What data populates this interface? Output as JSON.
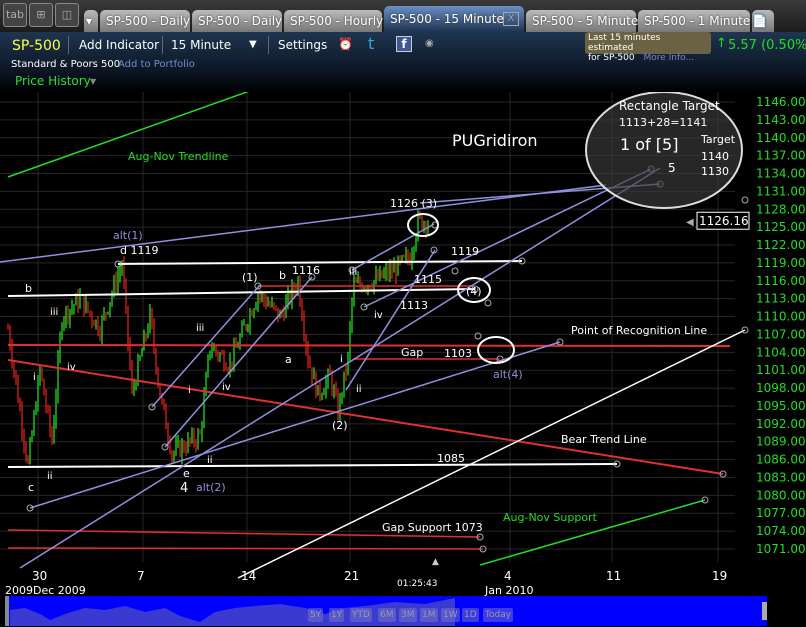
{
  "tabbar": {
    "tab_btn": "tab",
    "tabs": [
      {
        "label": "SP-500 - Daily"
      },
      {
        "label": "SP-500 - Daily"
      },
      {
        "label": "SP-500 - Hourly"
      },
      {
        "label": "SP-500 - 15 Minute",
        "active": true
      },
      {
        "label": "SP-500 - 5 Minute"
      },
      {
        "label": "SP-500 - 1 Minute"
      }
    ],
    "close": "X"
  },
  "toolbar": {
    "symbol": "SP-500",
    "add_indicator": "Add Indicator",
    "interval": "15 Minute",
    "settings": "Settings",
    "name": "Standard & Poors 500",
    "add_portfolio": "Add to Portfolio",
    "price_history": "Price History",
    "estimate_line1": "Last 15 minutes estimated",
    "estimate_line2": "for SP-500",
    "more_info": "More Info...",
    "change": "5.57 (0.50%)",
    "change_color": "#22dd22"
  },
  "chart_data": {
    "type": "candlestick",
    "symbol": "SP-500",
    "interval": "15 Minute",
    "ylim": [
      1069,
      1148
    ],
    "y_ticks": [
      "1146.00",
      "1143.00",
      "1140.00",
      "1137.00",
      "1134.00",
      "1131.00",
      "1128.00",
      "1125.00",
      "1122.00",
      "1119.00",
      "1116.00",
      "1113.00",
      "1110.00",
      "1107.00",
      "1104.00",
      "1101.00",
      "1098.00",
      "1095.00",
      "1092.00",
      "1089.00",
      "1086.00",
      "1083.00",
      "1080.00",
      "1077.00",
      "1074.00",
      "1071.00"
    ],
    "last_price": "1126.16",
    "x_ticks": [
      "30",
      "7",
      "14",
      "21",
      "4",
      "11",
      "19"
    ],
    "x_periods": [
      "2009Dec 2009",
      "Jan 2010"
    ],
    "countdown": "01:25:43",
    "up_color": "#22ee22",
    "down_color": "#ee2222",
    "annotations": {
      "title": "PUGridiron",
      "aug_nov_trendline": "Aug-Nov Trendline",
      "alt1": "alt(1)",
      "d1119": "d 1119",
      "b": "b",
      "iii1": "iii",
      "iv1": "iv",
      "i1": "i",
      "ii1": "ii",
      "c": "c",
      "e": "e",
      "four": "4",
      "alt2": "alt(2)",
      "i2": "i",
      "ii2": "ii",
      "iii2": "iii",
      "iv2": "iv",
      "w1": "(1)",
      "b2": "b",
      "l1116": "1116",
      "a": "a",
      "w2": "(2)",
      "i3": "i",
      "ii3": "ii",
      "iii3": "iii",
      "iv3": "iv",
      "l1113": "1113",
      "l1115": "1115",
      "w4": "(4)",
      "l1119": "1119",
      "l1126": "1126 (3)",
      "gap": "Gap",
      "l1103": "1103",
      "alt4": "alt(4)",
      "l1085": "1085",
      "por": "Point of Recognition Line",
      "bear": "Bear Trend Line",
      "gap_support": "Gap Support 1073",
      "aug_nov_support": "Aug-Nov Support",
      "rect1": "Rectangle Target",
      "rect2": "1113+28=1141",
      "one_of_five": "1 of [5]",
      "target": "Target",
      "t1140": "1140",
      "t1130": "1130",
      "five": "5",
      "watermark": "SP-500",
      "watermark2": "Standard & Poors 500"
    }
  },
  "navigator": {
    "ranges": [
      "5Y",
      "1Y",
      "YTD",
      "6M",
      "3M",
      "1M",
      "1W",
      "1D",
      "Today"
    ]
  }
}
